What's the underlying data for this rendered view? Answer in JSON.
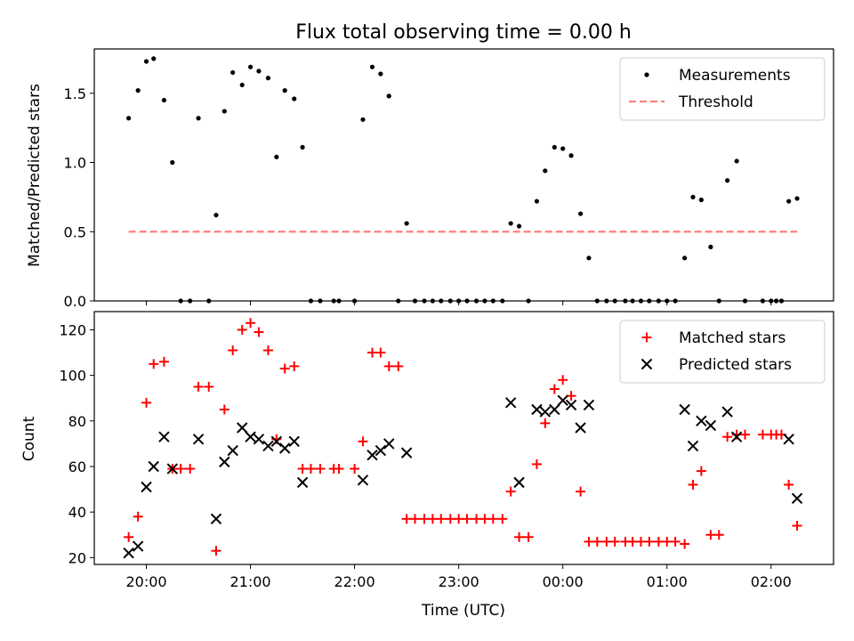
{
  "chart_data": [
    {
      "type": "scatter",
      "title": "Flux total observing time = 0.00 h",
      "ylabel": "Matched/Predicted stars",
      "xlabel": "",
      "xlim": [
        19.5,
        26.6
      ],
      "ylim": [
        0,
        1.82
      ],
      "yticks": [
        0.0,
        0.5,
        1.0,
        1.5
      ],
      "ytick_labels": [
        "0.0",
        "0.5",
        "1.0",
        "1.5"
      ],
      "xticks": [
        20,
        21,
        22,
        23,
        24,
        25,
        26
      ],
      "legend": {
        "placement": "top-right",
        "entries": [
          "Measurements",
          "Threshold"
        ]
      },
      "series": [
        {
          "name": "Measurements",
          "color": "#000000",
          "marker": "dot",
          "points": [
            [
              19.83,
              1.32
            ],
            [
              19.92,
              1.52
            ],
            [
              20.0,
              1.73
            ],
            [
              20.07,
              1.75
            ],
            [
              20.17,
              1.45
            ],
            [
              20.25,
              1.0
            ],
            [
              20.33,
              0.0
            ],
            [
              20.42,
              0.0
            ],
            [
              20.5,
              1.32
            ],
            [
              20.6,
              0.0
            ],
            [
              20.67,
              0.62
            ],
            [
              20.75,
              1.37
            ],
            [
              20.83,
              1.65
            ],
            [
              20.92,
              1.56
            ],
            [
              21.0,
              1.69
            ],
            [
              21.08,
              1.66
            ],
            [
              21.17,
              1.61
            ],
            [
              21.25,
              1.04
            ],
            [
              21.33,
              1.52
            ],
            [
              21.42,
              1.46
            ],
            [
              21.5,
              1.11
            ],
            [
              21.58,
              0.0
            ],
            [
              21.67,
              0.0
            ],
            [
              21.8,
              0.0
            ],
            [
              21.85,
              0.0
            ],
            [
              22.0,
              0.0
            ],
            [
              22.08,
              1.31
            ],
            [
              22.17,
              1.69
            ],
            [
              22.25,
              1.64
            ],
            [
              22.33,
              1.48
            ],
            [
              22.42,
              0.0
            ],
            [
              22.5,
              0.56
            ],
            [
              22.58,
              0.0
            ],
            [
              22.67,
              0.0
            ],
            [
              22.75,
              0.0
            ],
            [
              22.83,
              0.0
            ],
            [
              22.92,
              0.0
            ],
            [
              23.0,
              0.0
            ],
            [
              23.08,
              0.0
            ],
            [
              23.17,
              0.0
            ],
            [
              23.25,
              0.0
            ],
            [
              23.33,
              0.0
            ],
            [
              23.42,
              0.0
            ],
            [
              23.5,
              0.56
            ],
            [
              23.58,
              0.54
            ],
            [
              23.67,
              0.0
            ],
            [
              23.75,
              0.72
            ],
            [
              23.83,
              0.94
            ],
            [
              23.92,
              1.11
            ],
            [
              24.0,
              1.1
            ],
            [
              24.08,
              1.05
            ],
            [
              24.17,
              0.63
            ],
            [
              24.25,
              0.31
            ],
            [
              24.33,
              0.0
            ],
            [
              24.42,
              0.0
            ],
            [
              24.5,
              0.0
            ],
            [
              24.6,
              0.0
            ],
            [
              24.67,
              0.0
            ],
            [
              24.75,
              0.0
            ],
            [
              24.83,
              0.0
            ],
            [
              24.92,
              0.0
            ],
            [
              25.0,
              0.0
            ],
            [
              25.08,
              0.0
            ],
            [
              25.17,
              0.31
            ],
            [
              25.25,
              0.75
            ],
            [
              25.33,
              0.73
            ],
            [
              25.42,
              0.39
            ],
            [
              25.5,
              0.0
            ],
            [
              25.58,
              0.87
            ],
            [
              25.67,
              1.01
            ],
            [
              25.75,
              0.0
            ],
            [
              25.92,
              0.0
            ],
            [
              26.0,
              0.0
            ],
            [
              26.05,
              0.0
            ],
            [
              26.1,
              0.0
            ],
            [
              26.17,
              0.72
            ],
            [
              26.25,
              0.74
            ]
          ]
        },
        {
          "name": "Threshold",
          "color": "#ff7f7f",
          "style": "dashed-line",
          "points": [
            [
              19.83,
              0.5
            ],
            [
              26.25,
              0.5
            ]
          ]
        }
      ]
    },
    {
      "type": "scatter",
      "title": "",
      "ylabel": "Count",
      "xlabel": "Time (UTC)",
      "xlim": [
        19.5,
        26.6
      ],
      "ylim": [
        17,
        128
      ],
      "yticks": [
        20,
        40,
        60,
        80,
        100,
        120
      ],
      "ytick_labels": [
        "20",
        "40",
        "60",
        "80",
        "100",
        "120"
      ],
      "xticks": [
        20,
        21,
        22,
        23,
        24,
        25,
        26
      ],
      "xtick_labels": [
        "20:00",
        "21:00",
        "22:00",
        "23:00",
        "00:00",
        "01:00",
        "02:00"
      ],
      "legend": {
        "placement": "top-right",
        "entries": [
          "Matched stars",
          "Predicted stars"
        ]
      },
      "series": [
        {
          "name": "Matched stars",
          "color": "#ff0000",
          "marker": "plus",
          "points": [
            [
              19.83,
              29
            ],
            [
              19.92,
              38
            ],
            [
              20.0,
              88
            ],
            [
              20.07,
              105
            ],
            [
              20.17,
              106
            ],
            [
              20.25,
              59
            ],
            [
              20.33,
              59
            ],
            [
              20.42,
              59
            ],
            [
              20.5,
              95
            ],
            [
              20.6,
              95
            ],
            [
              20.67,
              23
            ],
            [
              20.75,
              85
            ],
            [
              20.83,
              111
            ],
            [
              20.92,
              120
            ],
            [
              21.0,
              123
            ],
            [
              21.08,
              119
            ],
            [
              21.17,
              111
            ],
            [
              21.25,
              72
            ],
            [
              21.33,
              103
            ],
            [
              21.42,
              104
            ],
            [
              21.5,
              59
            ],
            [
              21.58,
              59
            ],
            [
              21.67,
              59
            ],
            [
              21.8,
              59
            ],
            [
              21.85,
              59
            ],
            [
              22.0,
              59
            ],
            [
              22.08,
              71
            ],
            [
              22.17,
              110
            ],
            [
              22.25,
              110
            ],
            [
              22.33,
              104
            ],
            [
              22.42,
              104
            ],
            [
              22.5,
              37
            ],
            [
              22.58,
              37
            ],
            [
              22.67,
              37
            ],
            [
              22.75,
              37
            ],
            [
              22.83,
              37
            ],
            [
              22.92,
              37
            ],
            [
              23.0,
              37
            ],
            [
              23.08,
              37
            ],
            [
              23.17,
              37
            ],
            [
              23.25,
              37
            ],
            [
              23.33,
              37
            ],
            [
              23.42,
              37
            ],
            [
              23.5,
              49
            ],
            [
              23.58,
              29
            ],
            [
              23.67,
              29
            ],
            [
              23.75,
              61
            ],
            [
              23.83,
              79
            ],
            [
              23.92,
              94
            ],
            [
              24.0,
              98
            ],
            [
              24.08,
              91
            ],
            [
              24.17,
              49
            ],
            [
              24.25,
              27
            ],
            [
              24.33,
              27
            ],
            [
              24.42,
              27
            ],
            [
              24.5,
              27
            ],
            [
              24.6,
              27
            ],
            [
              24.67,
              27
            ],
            [
              24.75,
              27
            ],
            [
              24.83,
              27
            ],
            [
              24.92,
              27
            ],
            [
              25.0,
              27
            ],
            [
              25.08,
              27
            ],
            [
              25.17,
              26
            ],
            [
              25.25,
              52
            ],
            [
              25.33,
              58
            ],
            [
              25.42,
              30
            ],
            [
              25.5,
              30
            ],
            [
              25.58,
              73
            ],
            [
              25.67,
              74
            ],
            [
              25.75,
              74
            ],
            [
              25.92,
              74
            ],
            [
              26.0,
              74
            ],
            [
              26.05,
              74
            ],
            [
              26.1,
              74
            ],
            [
              26.17,
              52
            ],
            [
              26.25,
              34
            ]
          ]
        },
        {
          "name": "Predicted stars",
          "color": "#000000",
          "marker": "x",
          "points": [
            [
              19.83,
              22
            ],
            [
              19.92,
              25
            ],
            [
              20.0,
              51
            ],
            [
              20.07,
              60
            ],
            [
              20.17,
              73
            ],
            [
              20.25,
              59
            ],
            [
              20.5,
              72
            ],
            [
              20.67,
              37
            ],
            [
              20.75,
              62
            ],
            [
              20.83,
              67
            ],
            [
              20.92,
              77
            ],
            [
              21.0,
              73
            ],
            [
              21.08,
              72
            ],
            [
              21.17,
              69
            ],
            [
              21.25,
              71
            ],
            [
              21.33,
              68
            ],
            [
              21.42,
              71
            ],
            [
              21.5,
              53
            ],
            [
              22.08,
              54
            ],
            [
              22.17,
              65
            ],
            [
              22.25,
              67
            ],
            [
              22.33,
              70
            ],
            [
              22.5,
              66
            ],
            [
              23.5,
              88
            ],
            [
              23.58,
              53
            ],
            [
              23.75,
              85
            ],
            [
              23.83,
              84
            ],
            [
              23.92,
              85
            ],
            [
              24.0,
              89
            ],
            [
              24.08,
              87
            ],
            [
              24.17,
              77
            ],
            [
              24.25,
              87
            ],
            [
              25.17,
              85
            ],
            [
              25.25,
              69
            ],
            [
              25.33,
              80
            ],
            [
              25.42,
              78
            ],
            [
              25.58,
              84
            ],
            [
              25.67,
              73
            ],
            [
              26.17,
              72
            ],
            [
              26.25,
              46
            ]
          ]
        }
      ]
    }
  ]
}
